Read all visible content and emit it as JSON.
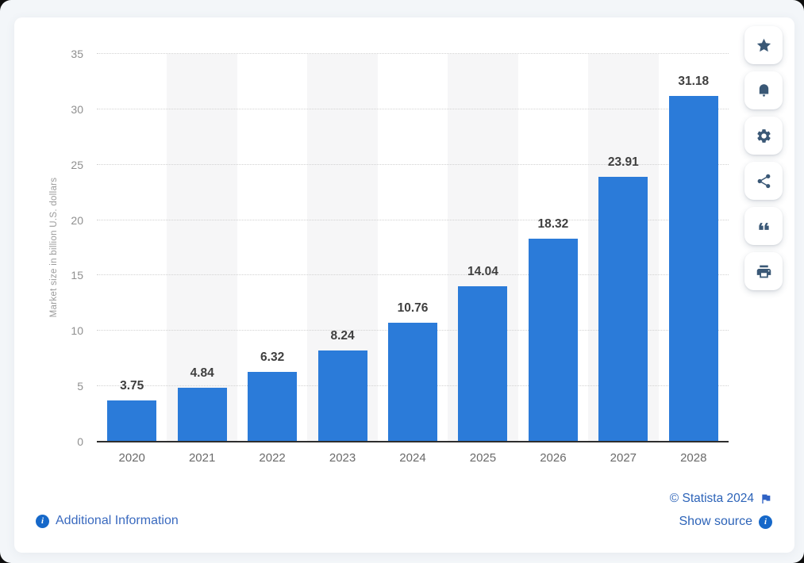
{
  "chart_data": {
    "type": "bar",
    "title": "",
    "categories": [
      "2020",
      "2021",
      "2022",
      "2023",
      "2024",
      "2025",
      "2026",
      "2027",
      "2028"
    ],
    "values": [
      3.75,
      4.84,
      6.32,
      8.24,
      10.76,
      14.04,
      18.32,
      23.91,
      31.18
    ],
    "value_labels": [
      "3.75",
      "4.84",
      "6.32",
      "8.24",
      "10.76",
      "14.04",
      "18.32",
      "23.91",
      "31.18"
    ],
    "xlabel": "",
    "ylabel": "Market size in billion U.S. dollars",
    "ylim": [
      0,
      35
    ],
    "y_ticks": [
      0,
      5,
      10,
      15,
      20,
      25,
      30,
      35
    ],
    "grid": "horizontal-dotted",
    "legend": "none",
    "bar_color": "#2b7bd9",
    "column_stripes": "alternating light gray behind odd columns"
  },
  "toolbar": {
    "buttons": [
      {
        "id": "favorite",
        "icon": "star-icon"
      },
      {
        "id": "notification",
        "icon": "bell-icon"
      },
      {
        "id": "settings",
        "icon": "gear-icon"
      },
      {
        "id": "share",
        "icon": "share-icon"
      },
      {
        "id": "cite",
        "icon": "quote-icon"
      },
      {
        "id": "print",
        "icon": "printer-icon"
      }
    ]
  },
  "footer": {
    "additional_information": "Additional Information",
    "copyright": "© Statista 2024",
    "show_source": "Show source"
  },
  "colors": {
    "bar": "#2b7bd9",
    "page_background": "#f3f6f9",
    "card_background": "#ffffff",
    "toolbar_icon": "#3a5876",
    "link_blue": "#2c63b8",
    "info_badge_blue": "#1668c9"
  }
}
